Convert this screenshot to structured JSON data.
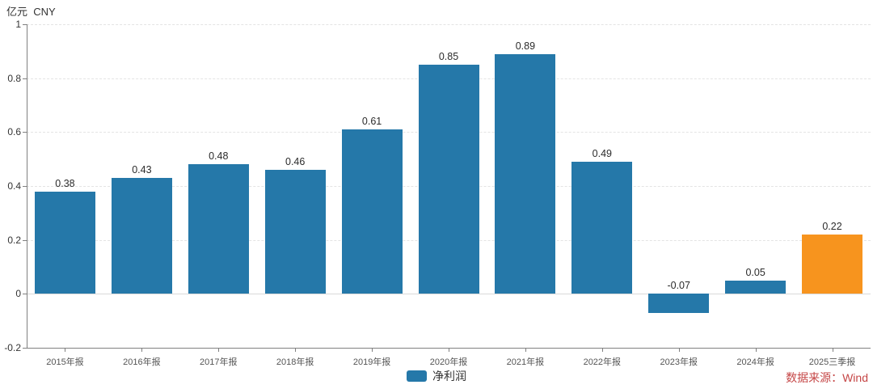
{
  "header": {
    "unit_label": "亿元  CNY"
  },
  "chart_data": {
    "type": "bar",
    "categories": [
      "2015年报",
      "2016年报",
      "2017年报",
      "2018年报",
      "2019年报",
      "2020年报",
      "2021年报",
      "2022年报",
      "2023年报",
      "2024年报",
      "2025三季报"
    ],
    "series": [
      {
        "name": "净利润",
        "values": [
          0.38,
          0.43,
          0.48,
          0.46,
          0.61,
          0.85,
          0.89,
          0.49,
          -0.07,
          0.05,
          0.22
        ]
      }
    ],
    "title": "",
    "xlabel": "",
    "ylabel": "亿元 CNY",
    "ylim": [
      -0.2,
      1
    ],
    "yticks": [
      1,
      0.8,
      0.6,
      0.4,
      0.2,
      0,
      -0.2
    ],
    "grid": "horizontal-dashed",
    "legend_position": "bottom-center",
    "value_labels_shown": true,
    "colors": {
      "bar_default": "#2578a9",
      "bar_last_highlight": "#f7941e",
      "axis_line": "#808080",
      "gridline": "#e4e4e4",
      "zero_line": "#d9d9d9"
    }
  },
  "footer": {
    "source_text": "数据来源：Wind",
    "source_color": "#c54646"
  }
}
